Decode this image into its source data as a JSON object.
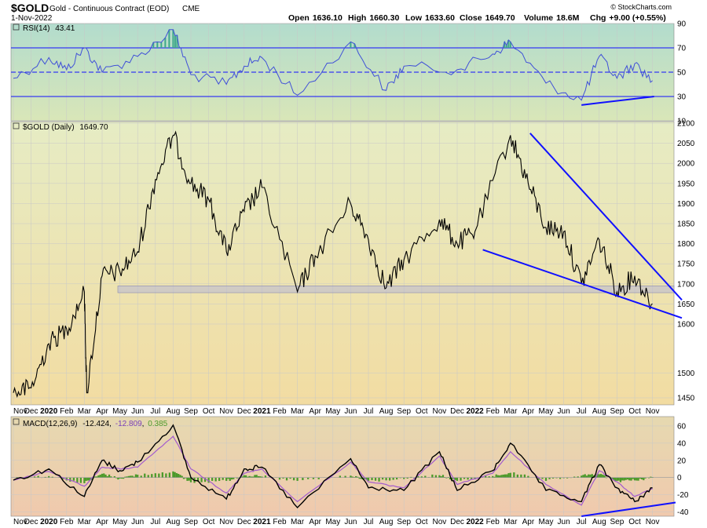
{
  "header": {
    "symbol": "$GOLD",
    "description": "Gold - Continuous Contract (EOD)",
    "exchange": "CME",
    "date": "1-Nov-2022",
    "open_label": "Open",
    "open": "1636.10",
    "high_label": "High",
    "high": "1660.30",
    "low_label": "Low",
    "low": "1633.60",
    "close_label": "Close",
    "close": "1649.70",
    "volume_label": "Volume",
    "volume": "18.6M",
    "chg_label": "Chg",
    "chg": "+9.00 (+0.55%)",
    "copyright": "© StockCharts.com"
  },
  "colors": {
    "rsi_bg_top": "#b2dccd",
    "rsi_bg_bottom": "#d9e6b8",
    "price_bg_top": "#e6ecc4",
    "price_bg_bottom": "#f2dca2",
    "macd_bg_top": "#e6d9b0",
    "macd_bg_bottom": "#f0c9ad",
    "line_blue": "#1010ff",
    "rsi_line": "#4050d8",
    "macd_signal": "#a35acd",
    "histogram": "#4c9a2a",
    "rsi_fill": "#3ea88a",
    "zone": "#b8b8d6"
  },
  "chart_data": [
    {
      "panel": "RSI",
      "type": "line",
      "label": "RSI(14)",
      "current": "43.41",
      "ylim": [
        10,
        90
      ],
      "yticks": [
        "90",
        "70",
        "50",
        "30",
        "10"
      ],
      "reference_lines": [
        70,
        50,
        30
      ],
      "x": [
        "Nov 2019",
        "Jan 2020",
        "Feb 2020",
        "Mar 2020",
        "Apr 2020",
        "Jun 2020",
        "Aug 2020",
        "Sep 2020",
        "Nov 2020",
        "Dec 2020",
        "Jan 2021",
        "Mar 2021",
        "Jun 2021",
        "Aug 2021",
        "Sep 2021",
        "Dec 2021",
        "Feb 2022",
        "Mar 2022",
        "May 2022",
        "Jul 2022",
        "Aug 2022",
        "Sep 2022",
        "Oct 2022",
        "Nov 2022"
      ],
      "values": [
        45,
        62,
        52,
        70,
        50,
        63,
        85,
        48,
        40,
        55,
        62,
        31,
        75,
        35,
        55,
        52,
        65,
        75,
        41,
        27,
        63,
        45,
        57,
        43
      ],
      "annotation_line": {
        "from": [
          "Jul 2022",
          23
        ],
        "to": [
          "Nov 2022",
          30
        ]
      }
    },
    {
      "panel": "Price",
      "type": "line",
      "label": "$GOLD (Daily)",
      "current": "1649.70",
      "ylim": [
        1430,
        2100
      ],
      "yticks": [
        "2100",
        "2050",
        "2000",
        "1950",
        "1900",
        "1850",
        "1800",
        "1750",
        "1700",
        "1650",
        "1600",
        "1500",
        "1450"
      ],
      "x_labels": [
        "Nov",
        "Dec",
        "2020",
        "Feb",
        "Mar",
        "Apr",
        "May",
        "Jun",
        "Jul",
        "Aug",
        "Sep",
        "Oct",
        "Nov",
        "Dec",
        "2021",
        "Feb",
        "Mar",
        "Apr",
        "May",
        "Jun",
        "Jul",
        "Aug",
        "Sep",
        "Oct",
        "Nov",
        "Dec",
        "2022",
        "Feb",
        "Mar",
        "Apr",
        "May",
        "Jun",
        "Jul",
        "Aug",
        "Sep",
        "Oct",
        "Nov"
      ],
      "x": [
        "Nov 2019",
        "Dec 2019",
        "Jan 2020",
        "Feb 2020",
        "Mar 2020",
        "Mar 2020",
        "Apr 2020",
        "May 2020",
        "Jun 2020",
        "Jul 2020",
        "Aug 2020",
        "Sep 2020",
        "Oct 2020",
        "Nov 2020",
        "Dec 2020",
        "Jan 2021",
        "Mar 2021",
        "Apr 2021",
        "Jun 2021",
        "Jul 2021",
        "Aug 2021",
        "Sep 2021",
        "Nov 2021",
        "Dec 2021",
        "Jan 2022",
        "Mar 2022",
        "Apr 2022",
        "May 2022",
        "Jun 2022",
        "Jul 2022",
        "Aug 2022",
        "Sep 2022",
        "Oct 2022",
        "Nov 2022"
      ],
      "values": [
        1460,
        1470,
        1560,
        1590,
        1680,
        1460,
        1720,
        1730,
        1780,
        1960,
        2070,
        1950,
        1910,
        1780,
        1880,
        1940,
        1680,
        1770,
        1900,
        1810,
        1690,
        1760,
        1860,
        1800,
        1830,
        2070,
        1950,
        1840,
        1830,
        1700,
        1810,
        1680,
        1720,
        1650
      ],
      "support_zone": [
        1678,
        1695
      ],
      "trendlines": [
        {
          "from": [
            "Mar 2022",
            2075
          ],
          "to": [
            "Nov 2022",
            1660
          ]
        },
        {
          "from": [
            "Jan 2022",
            1785
          ],
          "to": [
            "Nov 2022",
            1615
          ]
        }
      ]
    },
    {
      "panel": "MACD",
      "type": "line",
      "label": "MACD(12,26,9)",
      "macd_value": "-12.424",
      "signal_value": "-12.809",
      "histogram_value": "0.385",
      "ylim": [
        -45,
        70
      ],
      "yticks": [
        "60",
        "40",
        "20",
        "0",
        "-20",
        "-40"
      ],
      "x": [
        "Nov 2019",
        "Jan 2020",
        "Mar 2020",
        "Apr 2020",
        "May 2020",
        "Jun 2020",
        "Aug 2020",
        "Sep 2020",
        "Nov 2020",
        "Dec 2020",
        "Jan 2021",
        "Mar 2021",
        "Jun 2021",
        "Jul 2021",
        "Sep 2021",
        "Nov 2021",
        "Dec 2021",
        "Feb 2022",
        "Mar 2022",
        "May 2022",
        "Jul 2022",
        "Aug 2022",
        "Sep 2022",
        "Oct 2022",
        "Nov 2022"
      ],
      "series": [
        {
          "name": "MACD",
          "values": [
            -3,
            10,
            -22,
            20,
            8,
            18,
            61,
            0,
            -25,
            10,
            12,
            -35,
            22,
            -12,
            -15,
            30,
            -15,
            8,
            40,
            -15,
            -28,
            15,
            -12,
            -28,
            -12
          ]
        },
        {
          "name": "Signal",
          "values": [
            -3,
            7,
            -10,
            12,
            10,
            12,
            48,
            10,
            -18,
            5,
            10,
            -28,
            18,
            -5,
            -12,
            25,
            -8,
            5,
            30,
            -8,
            -32,
            8,
            -5,
            -22,
            -13
          ]
        }
      ],
      "annotation_line": {
        "from": [
          "Jul 2022",
          -45
        ],
        "to": [
          "Nov 2022",
          -29
        ]
      }
    }
  ]
}
